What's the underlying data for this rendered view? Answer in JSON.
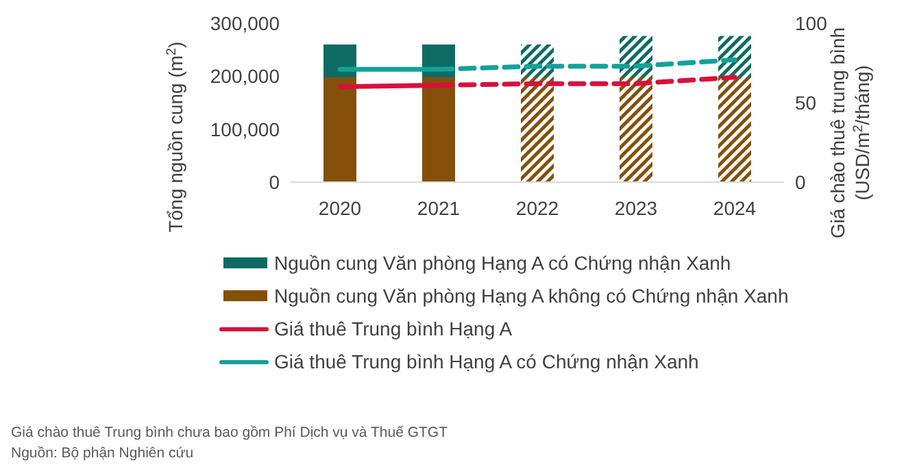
{
  "chart_data": {
    "type": "bar",
    "stacked": true,
    "categories": [
      "2020",
      "2021",
      "2022",
      "2023",
      "2024"
    ],
    "ylabel": "Tổng nguồn cung (m$^{2}$)",
    "y2label": "Giá chào thuê trung bình (USD/m$^{2}$/tháng)",
    "ylim": [
      0,
      300000
    ],
    "yticks": [
      0,
      {
        "value": 100000,
        "label": "100,000"
      },
      {
        "value": 200000,
        "label": "200,000"
      },
      {
        "value": 300000,
        "label": "300,000"
      }
    ],
    "y2lim": [
      0,
      100
    ],
    "y2ticks": [
      0,
      50,
      100
    ],
    "series": [
      {
        "name": "Nguồn cung Văn phòng Hạng A không có Chứng nhận Xanh",
        "color": "#845009",
        "values": [
          198000,
          198000,
          null,
          null,
          null
        ]
      },
      {
        "color": "#845009",
        "values": [
          null,
          null,
          198000,
          198000,
          198000
        ]
      },
      {
        "name": "Nguồn cung Văn phòng Hạng A có Chứng nhận Xanh",
        "color": "#0e6b63",
        "values": [
          62000,
          62000,
          null,
          null,
          null
        ]
      },
      {
        "color": "#0e6b63",
        "values": [
          null,
          null,
          62000,
          78000,
          78000
        ]
      },
      {
        "name": "Giá thuê Trung bình Hạng A",
        "type": "line",
        "axis": "y2",
        "color": "#d8103c",
        "line_style": "solid",
        "values": [
          60,
          61,
          null,
          null,
          null
        ]
      },
      {
        "type": "line",
        "axis": "y2",
        "color": "#d8103c",
        "line_style": "dashed",
        "values": [
          null,
          61,
          62,
          62,
          66
        ]
      },
      {
        "name": "Giá thuê Trung bình Hạng A có Chứng nhận Xanh",
        "type": "line",
        "axis": "y2",
        "color": "#12a29a",
        "line_style": "solid",
        "values": [
          71,
          71,
          null,
          null,
          null
        ]
      },
      {
        "type": "line",
        "axis": "y2",
        "color": "#12a29a",
        "line_style": "dashed",
        "values": [
          null,
          71,
          73,
          73,
          77
        ]
      }
    ],
    "legend": "bottom",
    "grid": false,
    "marker": "none",
    "annotations": [
      "Giá chào thuê Trung bình chưa bao gồm Phí Dịch vụ và Thuế GTGT",
      "Nguồn: Bộ phận Nghiên cứu"
    ]
  }
}
